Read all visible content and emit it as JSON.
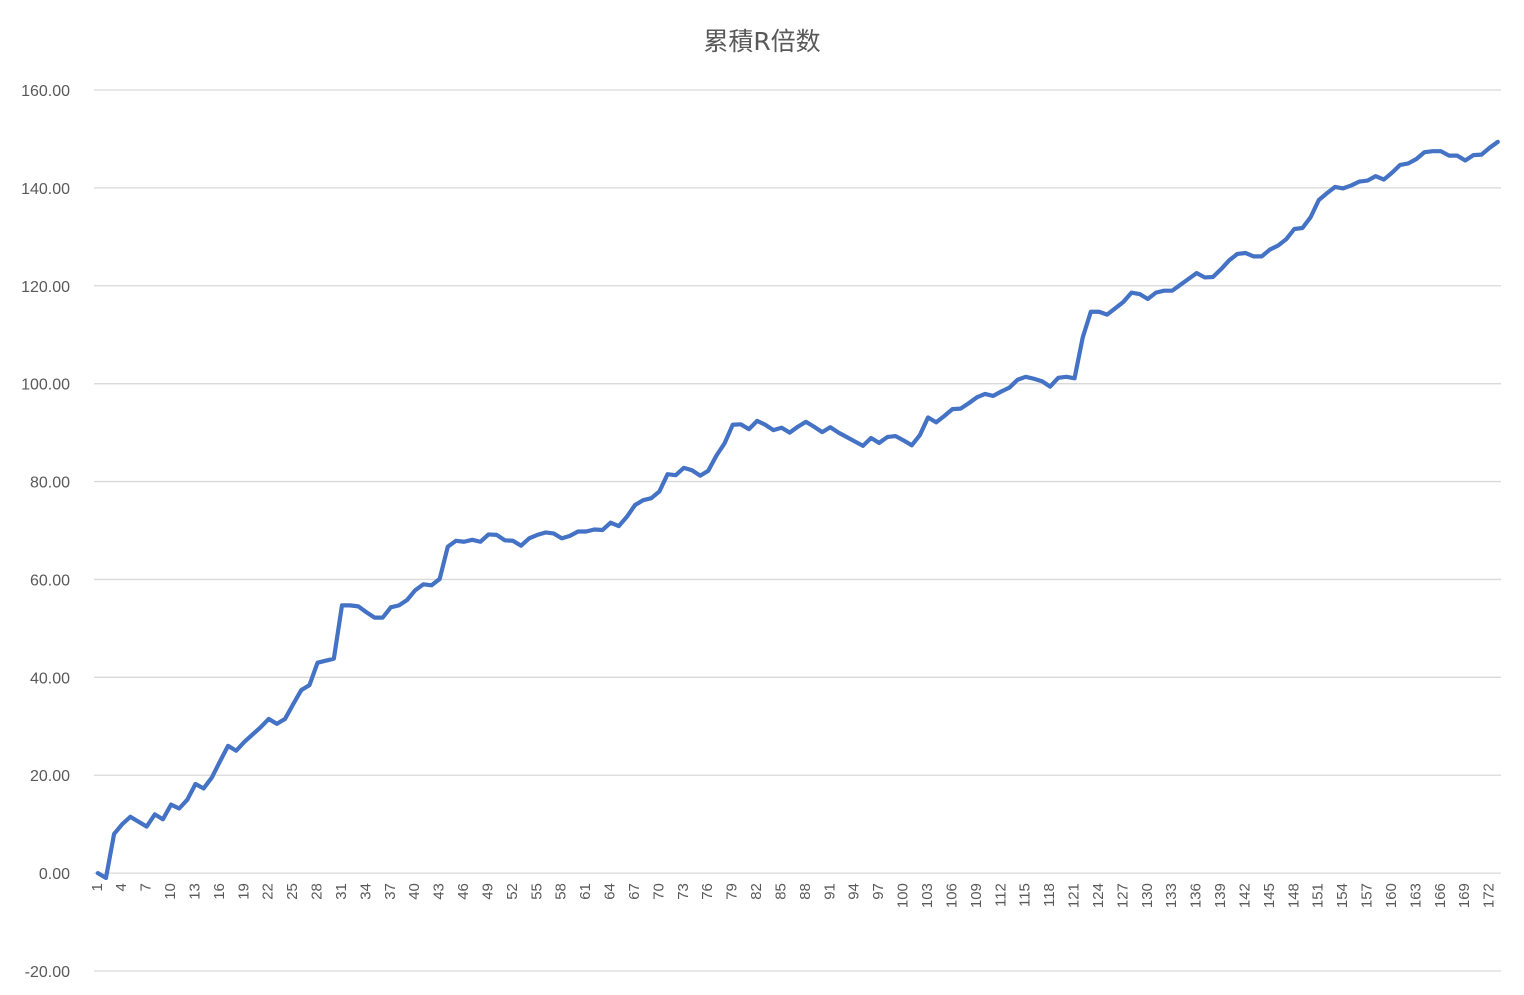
{
  "chart_data": {
    "type": "line",
    "title": "累積R倍数",
    "xlabel": "",
    "ylabel": "",
    "ylim": [
      -20,
      160
    ],
    "yticks": [
      "-20.00",
      "0.00",
      "20.00",
      "40.00",
      "60.00",
      "80.00",
      "100.00",
      "120.00",
      "140.00",
      "160.00"
    ],
    "ytick_values": [
      -20,
      0,
      20,
      40,
      60,
      80,
      100,
      120,
      140,
      160
    ],
    "negative_tick_color": "#c00000",
    "line_color": "#4472c4",
    "grid": true,
    "legend": "none",
    "x_tick_step": 3,
    "series": [
      {
        "values": [
          0.0,
          -1.0,
          8.0,
          10.0,
          11.5,
          10.5,
          9.5,
          12.0,
          11.0,
          14.0,
          13.2,
          15.0,
          18.2,
          17.3,
          19.5,
          22.8,
          26.0,
          25.0,
          26.8,
          28.3,
          29.8,
          31.5,
          30.5,
          31.5,
          34.5,
          37.4,
          38.4,
          43.0,
          43.4,
          43.8,
          54.7,
          54.7,
          54.5,
          53.3,
          52.2,
          52.2,
          54.3,
          54.7,
          55.8,
          57.8,
          59.0,
          58.8,
          60.1,
          66.7,
          67.9,
          67.7,
          68.1,
          67.7,
          69.2,
          69.1,
          68.0,
          67.9,
          66.9,
          68.4,
          69.1,
          69.6,
          69.4,
          68.4,
          68.9,
          69.8,
          69.8,
          70.2,
          70.1,
          71.6,
          70.9,
          72.8,
          75.2,
          76.2,
          76.6,
          78.0,
          81.5,
          81.3,
          82.8,
          82.3,
          81.2,
          82.2,
          85.3,
          87.8,
          91.6,
          91.7,
          90.7,
          92.4,
          91.6,
          90.5,
          91.0,
          90.0,
          91.2,
          92.2,
          91.2,
          90.1,
          91.1,
          90.0,
          89.1,
          88.2,
          87.3,
          88.9,
          87.9,
          89.1,
          89.3,
          88.4,
          87.4,
          89.5,
          93.1,
          92.1,
          93.4,
          94.8,
          94.9,
          96.0,
          97.2,
          97.9,
          97.5,
          98.4,
          99.2,
          100.8,
          101.4,
          101.0,
          100.5,
          99.4,
          101.2,
          101.4,
          101.1,
          109.4,
          114.7,
          114.7,
          114.1,
          115.4,
          116.7,
          118.6,
          118.3,
          117.3,
          118.6,
          119.0,
          119.0,
          120.2,
          121.4,
          122.6,
          121.7,
          121.8,
          123.4,
          125.2,
          126.5,
          126.7,
          126.0,
          126.0,
          127.4,
          128.2,
          129.5,
          131.6,
          131.8,
          134.0,
          137.5,
          138.9,
          140.2,
          139.9,
          140.5,
          141.3,
          141.5,
          142.4,
          141.7,
          143.1,
          144.7,
          145.0,
          145.9,
          147.3,
          147.5,
          147.5,
          146.6,
          146.6,
          145.6,
          146.7,
          146.8,
          148.2,
          149.4
        ]
      }
    ]
  }
}
